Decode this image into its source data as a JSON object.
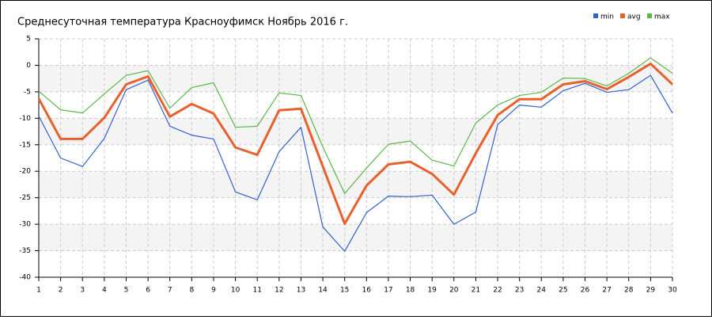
{
  "chart_data": {
    "type": "line",
    "title": "Среднесуточная температура Красноуфимск  Ноябрь 2016 г.",
    "x": [
      1,
      2,
      3,
      4,
      5,
      6,
      7,
      8,
      9,
      10,
      11,
      12,
      13,
      14,
      15,
      16,
      17,
      18,
      19,
      20,
      21,
      22,
      23,
      24,
      25,
      26,
      27,
      28,
      29,
      30
    ],
    "series": [
      {
        "name": "min",
        "color": "#3060d0",
        "values": [
          -9.6,
          -17.5,
          -19.1,
          -13.8,
          -4.6,
          -2.8,
          -11.5,
          -13.2,
          -13.9,
          -23.9,
          -25.4,
          -16.3,
          -11.7,
          -30.5,
          -35.1,
          -27.8,
          -24.7,
          -24.8,
          -24.5,
          -30.0,
          -27.7,
          -11.2,
          -7.5,
          -7.9,
          -4.8,
          -3.4,
          -5.1,
          -4.6,
          -1.9,
          -9.0
        ]
      },
      {
        "name": "avg",
        "color": "#e8602c",
        "values": [
          -6.3,
          -13.9,
          -13.9,
          -9.9,
          -3.6,
          -2.1,
          -9.7,
          -7.3,
          -9.1,
          -15.5,
          -16.9,
          -8.5,
          -8.2,
          -19.1,
          -29.9,
          -22.7,
          -18.7,
          -18.2,
          -20.5,
          -24.4,
          -16.6,
          -9.4,
          -6.4,
          -6.4,
          -3.6,
          -3.0,
          -4.5,
          -2.2,
          0.3,
          -3.6
        ]
      },
      {
        "name": "max",
        "color": "#5cb848",
        "values": [
          -4.9,
          -8.4,
          -9.0,
          -5.4,
          -1.9,
          -1.0,
          -8.1,
          -4.2,
          -3.3,
          -11.7,
          -11.5,
          -5.2,
          -5.7,
          -15.4,
          -24.2,
          -19.4,
          -14.9,
          -14.3,
          -17.9,
          -19.0,
          -10.9,
          -7.5,
          -5.7,
          -5.1,
          -2.4,
          -2.5,
          -3.9,
          -1.5,
          1.4,
          -1.5
        ]
      }
    ],
    "xlim": [
      1,
      30
    ],
    "xticks": [
      1,
      2,
      3,
      4,
      5,
      6,
      7,
      8,
      9,
      10,
      11,
      12,
      13,
      14,
      15,
      16,
      17,
      18,
      19,
      20,
      21,
      22,
      23,
      24,
      25,
      26,
      27,
      28,
      29,
      30
    ],
    "ylim": [
      -40,
      5
    ],
    "yticks": [
      5,
      0,
      -5,
      -10,
      -15,
      -20,
      -25,
      -30,
      -35,
      -40
    ],
    "grid": true,
    "legend": "top-right"
  }
}
